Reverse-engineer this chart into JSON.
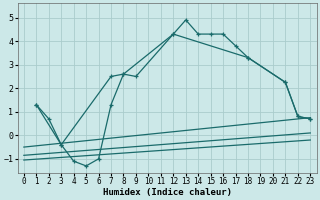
{
  "xlabel": "Humidex (Indice chaleur)",
  "xlim": [
    -0.5,
    23.5
  ],
  "ylim": [
    -1.6,
    5.6
  ],
  "yticks": [
    -1,
    0,
    1,
    2,
    3,
    4,
    5
  ],
  "xticks": [
    0,
    1,
    2,
    3,
    4,
    5,
    6,
    7,
    8,
    9,
    10,
    11,
    12,
    13,
    14,
    15,
    16,
    17,
    18,
    19,
    20,
    21,
    22,
    23
  ],
  "bg_color": "#cce8e8",
  "grid_color": "#aacccc",
  "line_color": "#1a6b6b",
  "line1_x": [
    1,
    2,
    3,
    4,
    5,
    6,
    7,
    8,
    9,
    12,
    13,
    14,
    15,
    16,
    17,
    18,
    21,
    22,
    23
  ],
  "line1_y": [
    1.3,
    0.7,
    -0.4,
    -1.1,
    -1.3,
    -1.0,
    1.3,
    2.6,
    2.5,
    4.3,
    4.9,
    4.3,
    4.3,
    4.3,
    3.8,
    3.3,
    2.25,
    0.8,
    0.7
  ],
  "line2_x": [
    1,
    3,
    7,
    8,
    12,
    18,
    21,
    22,
    23
  ],
  "line2_y": [
    1.3,
    -0.4,
    2.5,
    2.6,
    4.3,
    3.3,
    2.25,
    0.8,
    0.7
  ],
  "line3_x": [
    0,
    23
  ],
  "line3_y": [
    -0.5,
    0.75
  ],
  "line4_x": [
    0,
    23
  ],
  "line4_y": [
    -0.85,
    0.1
  ],
  "line5_x": [
    0,
    23
  ],
  "line5_y": [
    -1.05,
    -0.2
  ]
}
